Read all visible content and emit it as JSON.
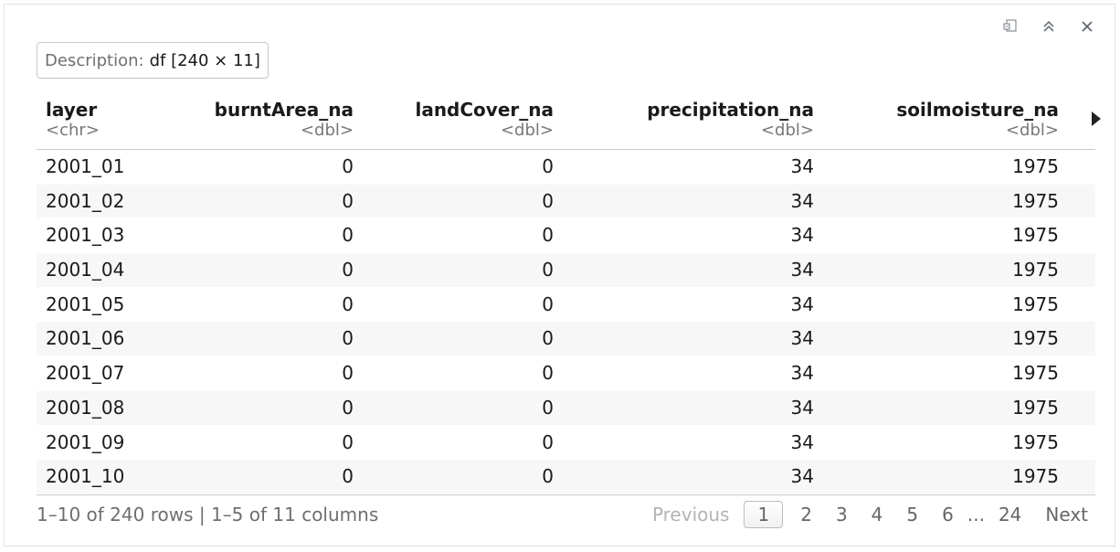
{
  "toolbar": {
    "icons": [
      "export-icon",
      "collapse-icon",
      "close-icon"
    ]
  },
  "description": {
    "label": "Description:",
    "value": "df [240 × 11]"
  },
  "table": {
    "columns": [
      {
        "name": "layer",
        "type": "<chr>"
      },
      {
        "name": "burntArea_na",
        "type": "<dbl>"
      },
      {
        "name": "landCover_na",
        "type": "<dbl>"
      },
      {
        "name": "precipitation_na",
        "type": "<dbl>"
      },
      {
        "name": "soilmoisture_na",
        "type": "<dbl>"
      }
    ],
    "rows": [
      [
        "2001_01",
        "0",
        "0",
        "34",
        "1975"
      ],
      [
        "2001_02",
        "0",
        "0",
        "34",
        "1975"
      ],
      [
        "2001_03",
        "0",
        "0",
        "34",
        "1975"
      ],
      [
        "2001_04",
        "0",
        "0",
        "34",
        "1975"
      ],
      [
        "2001_05",
        "0",
        "0",
        "34",
        "1975"
      ],
      [
        "2001_06",
        "0",
        "0",
        "34",
        "1975"
      ],
      [
        "2001_07",
        "0",
        "0",
        "34",
        "1975"
      ],
      [
        "2001_08",
        "0",
        "0",
        "34",
        "1975"
      ],
      [
        "2001_09",
        "0",
        "0",
        "34",
        "1975"
      ],
      [
        "2001_10",
        "0",
        "0",
        "34",
        "1975"
      ]
    ]
  },
  "footer": {
    "info": "1–10 of 240 rows | 1–5 of 11 columns",
    "previous": "Previous",
    "pages": [
      "1",
      "2",
      "3",
      "4",
      "5",
      "6"
    ],
    "ellipsis": "...",
    "last_page": "24",
    "next": "Next"
  }
}
